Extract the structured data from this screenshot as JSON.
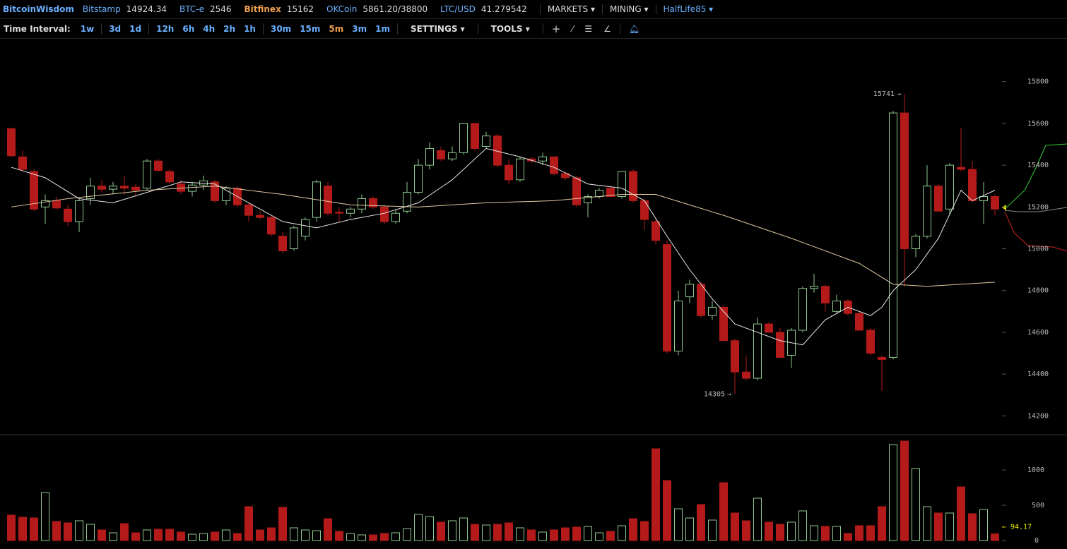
{
  "header": {
    "brand": "BitcoinWisdom",
    "markets": [
      {
        "name": "Bitstamp",
        "price": "14924.34"
      },
      {
        "name": "BTC-e",
        "price": "2546"
      },
      {
        "name": "Bitfinex",
        "price": "15162"
      },
      {
        "name": "OKCoin",
        "price": "5861.20/38800"
      },
      {
        "name": "LTC/USD",
        "price": "41.279542"
      }
    ],
    "menus": [
      "MARKETS",
      "MINING"
    ],
    "user": "HalfLife85"
  },
  "toolbar": {
    "label": "Time Interval:",
    "intervals": [
      "1w",
      "3d",
      "1d",
      "12h",
      "6h",
      "4h",
      "2h",
      "1h",
      "30m",
      "15m",
      "5m",
      "3m",
      "1m"
    ],
    "active": "5m",
    "menus": [
      "SETTINGS",
      "TOOLS"
    ]
  },
  "chart_data": [
    {
      "type": "candlestick",
      "up_color": "#8fc98f",
      "down_color": "#b41a1a",
      "open": [
        15575,
        15440,
        15370,
        15200,
        15230,
        15190,
        15130,
        15240,
        15300,
        15285,
        15300,
        15295,
        15290,
        15420,
        15370,
        15310,
        15275,
        15305,
        15320,
        15230,
        15290,
        15210,
        15160,
        15150,
        15060,
        15000,
        15060,
        15150,
        15300,
        15175,
        15170,
        15190,
        15240,
        15200,
        15130,
        15180,
        15270,
        15400,
        15470,
        15430,
        15460,
        15600,
        15490,
        15540,
        15400,
        15330,
        15430,
        15420,
        15440,
        15360,
        15340,
        15220,
        15250,
        15290,
        15250,
        15370,
        15230,
        15130,
        15020,
        14510,
        14770,
        14830,
        14680,
        14720,
        14560,
        14410,
        14380,
        14640,
        14600,
        14490,
        14610,
        14810,
        14820,
        14700,
        14750,
        14690,
        14610,
        14480,
        14480,
        15650,
        15000,
        15060,
        15300,
        15190,
        15390,
        15380,
        15230,
        15250
      ],
      "high": [
        15580,
        15470,
        15380,
        15260,
        15250,
        15210,
        15240,
        15340,
        15330,
        15320,
        15350,
        15310,
        15430,
        15430,
        15380,
        15330,
        15320,
        15350,
        15330,
        15300,
        15300,
        15220,
        15180,
        15160,
        15080,
        15110,
        15150,
        15330,
        15320,
        15200,
        15200,
        15260,
        15250,
        15210,
        15190,
        15320,
        15430,
        15510,
        15490,
        15490,
        15600,
        15600,
        15560,
        15550,
        15430,
        15440,
        15440,
        15460,
        15440,
        15370,
        15350,
        15260,
        15290,
        15300,
        15370,
        15380,
        15240,
        15140,
        15040,
        14800,
        14850,
        14840,
        14750,
        14730,
        14570,
        14490,
        14670,
        14650,
        14620,
        14620,
        14820,
        14880,
        14830,
        14780,
        14760,
        14700,
        14620,
        14490,
        15660,
        15741,
        15070,
        15400,
        15310,
        15410,
        15580,
        15420,
        15320,
        15260
      ],
      "low": [
        15440,
        15370,
        15180,
        15120,
        15190,
        15110,
        15080,
        15210,
        15270,
        15260,
        15260,
        15250,
        15280,
        15370,
        15310,
        15260,
        15250,
        15280,
        15220,
        15210,
        15200,
        15130,
        15140,
        15060,
        14980,
        14990,
        15040,
        15130,
        15160,
        15130,
        15150,
        15170,
        15190,
        15120,
        15120,
        15170,
        15260,
        15380,
        15420,
        15420,
        15450,
        15470,
        15480,
        15390,
        15310,
        15320,
        15410,
        15400,
        15350,
        15330,
        15200,
        15150,
        15240,
        15250,
        15240,
        15220,
        15090,
        15020,
        14500,
        14490,
        14740,
        14670,
        14660,
        14560,
        14305,
        14370,
        14370,
        14600,
        14480,
        14430,
        14600,
        14790,
        14700,
        14690,
        14680,
        14610,
        14490,
        14320,
        14470,
        14820,
        14960,
        15050,
        15180,
        15160,
        15370,
        15220,
        15120,
        15160
      ],
      "close": [
        15445,
        15380,
        15190,
        15230,
        15195,
        15130,
        15230,
        15300,
        15285,
        15300,
        15290,
        15280,
        15420,
        15375,
        15320,
        15275,
        15305,
        15325,
        15230,
        15290,
        15210,
        15160,
        15150,
        15070,
        14990,
        15100,
        15140,
        15320,
        15170,
        15170,
        15190,
        15240,
        15200,
        15130,
        15170,
        15270,
        15400,
        15480,
        15430,
        15460,
        15600,
        15480,
        15540,
        15400,
        15330,
        15430,
        15420,
        15440,
        15360,
        15340,
        15210,
        15250,
        15280,
        15250,
        15370,
        15230,
        15140,
        15040,
        14510,
        14750,
        14830,
        14680,
        14720,
        14560,
        14410,
        14380,
        14640,
        14600,
        14480,
        14610,
        14810,
        14820,
        14740,
        14750,
        14690,
        14610,
        14500,
        14470,
        15650,
        15000,
        15060,
        15300,
        15180,
        15400,
        15380,
        15230,
        15250,
        15190
      ],
      "lines": [
        {
          "color": "#e8e8e8",
          "x": [
            0,
            3,
            6,
            9,
            12,
            15,
            18,
            21,
            24,
            27,
            30,
            33,
            36,
            39,
            42,
            45,
            48,
            51,
            54,
            56,
            58,
            60,
            62,
            64,
            66,
            68,
            70,
            72,
            74,
            76,
            77,
            78,
            80,
            82,
            84,
            85,
            87
          ],
          "values": [
            15390,
            15340,
            15240,
            15220,
            15270,
            15320,
            15310,
            15220,
            15130,
            15100,
            15140,
            15170,
            15220,
            15330,
            15480,
            15440,
            15390,
            15310,
            15290,
            15230,
            15060,
            14900,
            14760,
            14640,
            14600,
            14560,
            14540,
            14660,
            14720,
            14680,
            14720,
            14800,
            14900,
            15050,
            15280,
            15230,
            15280
          ]
        },
        {
          "color": "#e0c8a0",
          "x": [
            0,
            5,
            12,
            18,
            24,
            30,
            36,
            42,
            48,
            54,
            57,
            60,
            63,
            69,
            75,
            78,
            81,
            87
          ],
          "values": [
            15200,
            15240,
            15280,
            15300,
            15260,
            15210,
            15200,
            15220,
            15230,
            15260,
            15260,
            15210,
            15160,
            15050,
            14930,
            14830,
            14820,
            14840
          ]
        }
      ],
      "ylim": [
        14110,
        16005
      ],
      "yticks": [
        14200,
        14400,
        14600,
        14800,
        15000,
        15200,
        15400,
        15600,
        15800
      ]
    },
    {
      "type": "bar",
      "values": [
        360,
        330,
        320,
        680,
        270,
        250,
        280,
        230,
        150,
        110,
        240,
        110,
        150,
        160,
        160,
        120,
        90,
        100,
        120,
        150,
        100,
        480,
        150,
        180,
        470,
        180,
        150,
        140,
        310,
        130,
        100,
        80,
        80,
        100,
        110,
        170,
        370,
        340,
        260,
        280,
        320,
        230,
        220,
        230,
        250,
        180,
        150,
        120,
        150,
        180,
        190,
        200,
        110,
        130,
        210,
        310,
        270,
        1300,
        850,
        450,
        320,
        510,
        290,
        820,
        390,
        280,
        600,
        260,
        230,
        260,
        420,
        210,
        200,
        200,
        100,
        210,
        210,
        480,
        1360,
        1410,
        1020,
        480,
        390,
        390,
        760,
        380,
        440,
        94.17
      ],
      "ylim": [
        -120,
        1490
      ],
      "yticks": [
        0,
        500,
        1000
      ]
    }
  ]
}
